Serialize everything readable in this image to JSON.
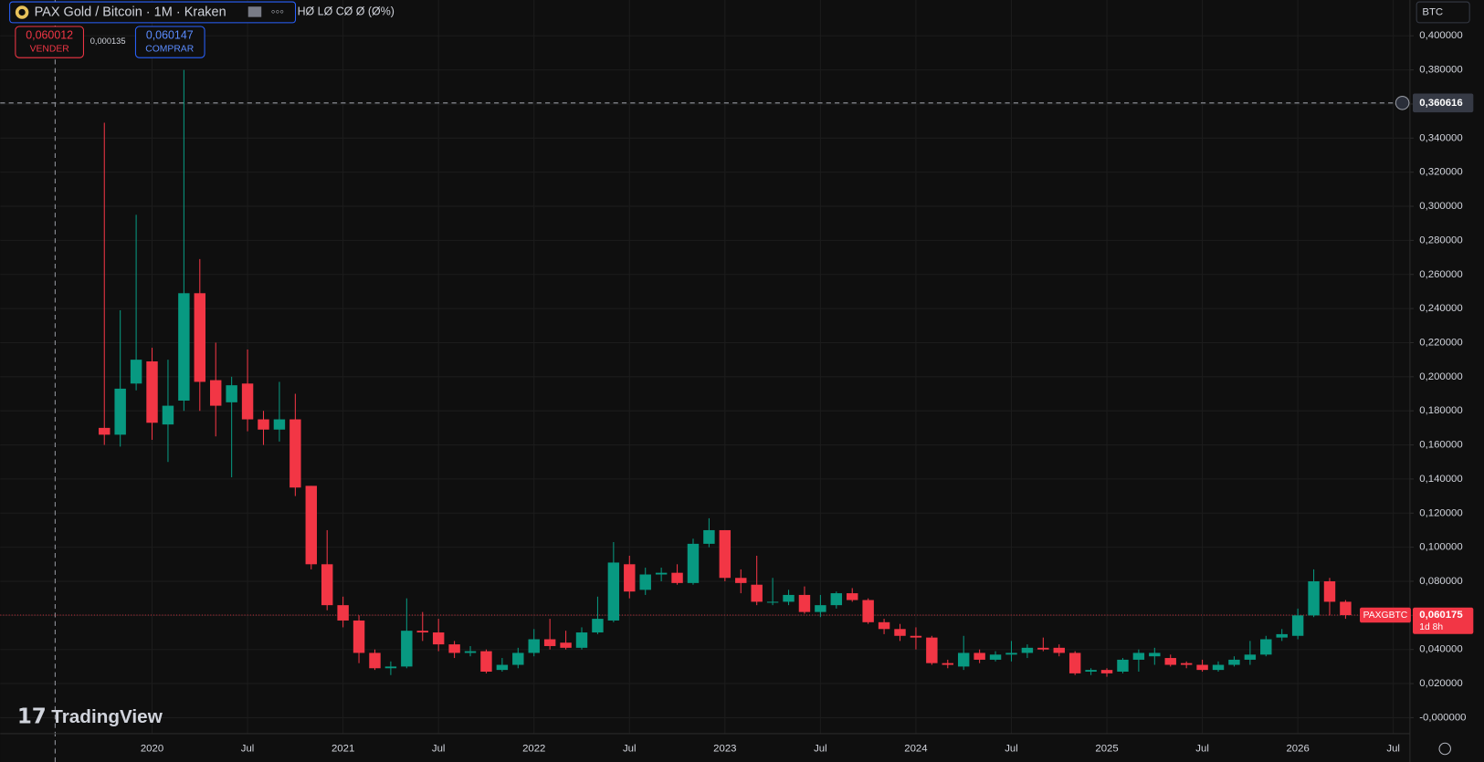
{
  "chart_data": {
    "type": "candlestick",
    "title": "PAX Gold / Bitcoin · 1M · Kraken",
    "ohlc_summary": "HØ LØ CØ Ø (Ø%)",
    "currency": "BTC",
    "sell_price": "0,060012",
    "sell_label": "VENDER",
    "spread": "0,000135",
    "buy_price": "0,060147",
    "buy_label": "COMPRAR",
    "crosshair_price": {
      "value": 0.360616,
      "label": "0,360616"
    },
    "symbol": "PAXGBTC",
    "last_price": {
      "value": 0.060175,
      "label": "0,060175"
    },
    "countdown": "1d 8h",
    "watermark": "TradingView",
    "up_color": "#089981",
    "down_color": "#f23645",
    "x": [
      "2019-10",
      "2019-11",
      "2019-12",
      "2020-01",
      "2020-02",
      "2020-03",
      "2020-04",
      "2020-05",
      "2020-06",
      "2020-07",
      "2020-08",
      "2020-09",
      "2020-10",
      "2020-11",
      "2020-12",
      "2021-01",
      "2021-02",
      "2021-03",
      "2021-04",
      "2021-05",
      "2021-06",
      "2021-07",
      "2021-08",
      "2021-09",
      "2021-10",
      "2021-11",
      "2021-12",
      "2022-01",
      "2022-02",
      "2022-03",
      "2022-04",
      "2022-05",
      "2022-06",
      "2022-07",
      "2022-08",
      "2022-09",
      "2022-10",
      "2022-11",
      "2022-12",
      "2023-01",
      "2023-02",
      "2023-03",
      "2023-04",
      "2023-05",
      "2023-06",
      "2023-07",
      "2023-08",
      "2023-09",
      "2023-10",
      "2023-11",
      "2023-12",
      "2024-01",
      "2024-02",
      "2024-03",
      "2024-04",
      "2024-05",
      "2024-06",
      "2024-07",
      "2024-08",
      "2024-09",
      "2024-10",
      "2024-11",
      "2024-12",
      "2025-01",
      "2025-02",
      "2025-03",
      "2025-04",
      "2025-05",
      "2025-06",
      "2025-07",
      "2025-08",
      "2025-09",
      "2025-10",
      "2025-11",
      "2025-12",
      "2026-01",
      "2026-02",
      "2026-03",
      "2026-04"
    ],
    "open": [
      0.17,
      0.166,
      0.196,
      0.209,
      0.172,
      0.186,
      0.249,
      0.198,
      0.185,
      0.196,
      0.175,
      0.169,
      0.175,
      0.136,
      0.09,
      0.066,
      0.057,
      0.038,
      0.029,
      0.03,
      0.051,
      0.05,
      0.043,
      0.038,
      0.039,
      0.028,
      0.031,
      0.038,
      0.046,
      0.044,
      0.041,
      0.05,
      0.057,
      0.09,
      0.075,
      0.084,
      0.085,
      0.079,
      0.102,
      0.11,
      0.082,
      0.078,
      0.068,
      0.068,
      0.072,
      0.062,
      0.066,
      0.073,
      0.069,
      0.056,
      0.052,
      0.048,
      0.047,
      0.032,
      0.03,
      0.038,
      0.034,
      0.037,
      0.038,
      0.041,
      0.041,
      0.038,
      0.027,
      0.028,
      0.027,
      0.034,
      0.036,
      0.035,
      0.032,
      0.031,
      0.028,
      0.031,
      0.034,
      0.037,
      0.047,
      0.048,
      0.06,
      0.08,
      0.068
    ],
    "high": [
      0.349,
      0.239,
      0.295,
      0.217,
      0.21,
      0.38,
      0.269,
      0.22,
      0.2,
      0.216,
      0.18,
      0.197,
      0.19,
      0.136,
      0.11,
      0.071,
      0.06,
      0.04,
      0.033,
      0.07,
      0.062,
      0.058,
      0.045,
      0.042,
      0.04,
      0.035,
      0.041,
      0.052,
      0.058,
      0.051,
      0.053,
      0.071,
      0.103,
      0.095,
      0.088,
      0.088,
      0.09,
      0.105,
      0.117,
      0.11,
      0.087,
      0.095,
      0.082,
      0.075,
      0.077,
      0.072,
      0.074,
      0.076,
      0.07,
      0.058,
      0.055,
      0.053,
      0.048,
      0.034,
      0.048,
      0.04,
      0.039,
      0.045,
      0.043,
      0.047,
      0.043,
      0.039,
      0.029,
      0.029,
      0.035,
      0.04,
      0.041,
      0.037,
      0.033,
      0.034,
      0.033,
      0.036,
      0.045,
      0.048,
      0.052,
      0.064,
      0.087,
      0.082,
      0.069
    ],
    "low": [
      0.16,
      0.159,
      0.192,
      0.163,
      0.15,
      0.18,
      0.18,
      0.165,
      0.141,
      0.168,
      0.16,
      0.162,
      0.13,
      0.087,
      0.063,
      0.053,
      0.032,
      0.028,
      0.025,
      0.029,
      0.045,
      0.039,
      0.035,
      0.036,
      0.026,
      0.027,
      0.029,
      0.036,
      0.04,
      0.04,
      0.04,
      0.049,
      0.056,
      0.07,
      0.072,
      0.08,
      0.078,
      0.078,
      0.1,
      0.08,
      0.073,
      0.066,
      0.066,
      0.066,
      0.061,
      0.059,
      0.064,
      0.068,
      0.055,
      0.049,
      0.045,
      0.04,
      0.031,
      0.029,
      0.028,
      0.032,
      0.033,
      0.033,
      0.035,
      0.039,
      0.036,
      0.025,
      0.025,
      0.024,
      0.026,
      0.027,
      0.031,
      0.03,
      0.029,
      0.027,
      0.027,
      0.03,
      0.031,
      0.036,
      0.045,
      0.046,
      0.059,
      0.06,
      0.058
    ],
    "close": [
      0.166,
      0.193,
      0.21,
      0.173,
      0.183,
      0.249,
      0.197,
      0.183,
      0.195,
      0.175,
      0.169,
      0.175,
      0.135,
      0.09,
      0.066,
      0.057,
      0.038,
      0.029,
      0.03,
      0.051,
      0.05,
      0.043,
      0.038,
      0.039,
      0.027,
      0.031,
      0.038,
      0.046,
      0.042,
      0.041,
      0.05,
      0.058,
      0.091,
      0.074,
      0.084,
      0.085,
      0.079,
      0.102,
      0.11,
      0.082,
      0.079,
      0.068,
      0.068,
      0.072,
      0.062,
      0.066,
      0.073,
      0.069,
      0.056,
      0.052,
      0.048,
      0.047,
      0.032,
      0.031,
      0.038,
      0.034,
      0.037,
      0.038,
      0.041,
      0.04,
      0.038,
      0.026,
      0.028,
      0.026,
      0.034,
      0.038,
      0.038,
      0.031,
      0.031,
      0.028,
      0.031,
      0.034,
      0.037,
      0.046,
      0.049,
      0.06,
      0.08,
      0.068,
      0.060175
    ],
    "ylim": [
      -0.026,
      0.421
    ],
    "yticks": [
      {
        "value": 0,
        "label": "-0,000000"
      },
      {
        "value": 0.02,
        "label": "0,020000"
      },
      {
        "value": 0.04,
        "label": "0,040000"
      },
      {
        "value": 0.06,
        "label": "0,060000"
      },
      {
        "value": 0.08,
        "label": "0,080000"
      },
      {
        "value": 0.1,
        "label": "0,100000"
      },
      {
        "value": 0.12,
        "label": "0,120000"
      },
      {
        "value": 0.14,
        "label": "0,140000"
      },
      {
        "value": 0.16,
        "label": "0,160000"
      },
      {
        "value": 0.18,
        "label": "0,180000"
      },
      {
        "value": 0.2,
        "label": "0,200000"
      },
      {
        "value": 0.22,
        "label": "0,220000"
      },
      {
        "value": 0.24,
        "label": "0,240000"
      },
      {
        "value": 0.26,
        "label": "0,260000"
      },
      {
        "value": 0.28,
        "label": "0,280000"
      },
      {
        "value": 0.3,
        "label": "0,300000"
      },
      {
        "value": 0.32,
        "label": "0,320000"
      },
      {
        "value": 0.34,
        "label": "0,340000"
      },
      {
        "value": 0.36,
        "label": "0,360000"
      },
      {
        "value": 0.38,
        "label": "0,380000"
      },
      {
        "value": 0.4,
        "label": "0,400000"
      }
    ],
    "xticks": [
      {
        "value": "2020-01",
        "label": "2020"
      },
      {
        "value": "2020-07",
        "label": "Jul"
      },
      {
        "value": "2021-01",
        "label": "2021"
      },
      {
        "value": "2021-07",
        "label": "Jul"
      },
      {
        "value": "2022-01",
        "label": "2022"
      },
      {
        "value": "2022-07",
        "label": "Jul"
      },
      {
        "value": "2023-01",
        "label": "2023"
      },
      {
        "value": "2023-07",
        "label": "Jul"
      },
      {
        "value": "2024-01",
        "label": "2024"
      },
      {
        "value": "2024-07",
        "label": "Jul"
      },
      {
        "value": "2025-01",
        "label": "2025"
      },
      {
        "value": "2025-07",
        "label": "Jul"
      },
      {
        "value": "2026-01",
        "label": "2026"
      },
      {
        "value": "2026-07",
        "label": "Jul"
      }
    ],
    "grid": true
  }
}
